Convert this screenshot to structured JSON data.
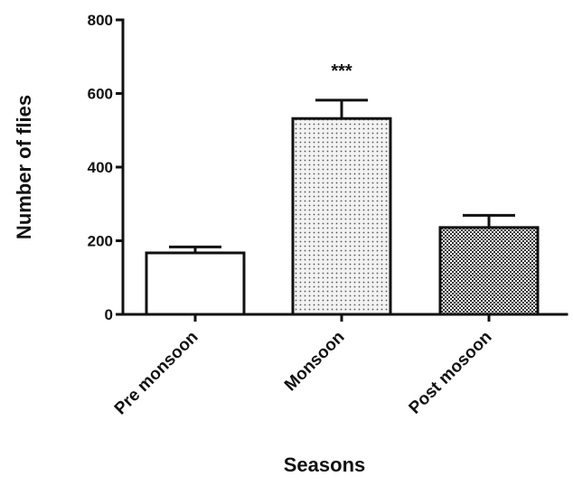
{
  "chart_data": {
    "type": "bar",
    "categories": [
      "Pre monsoon",
      "Monsoon",
      "Post mosoon"
    ],
    "values": [
      167,
      532,
      236
    ],
    "errors": [
      16,
      50,
      33
    ],
    "fills": [
      "plain",
      "dots",
      "checker"
    ],
    "xlabel": "Seasons",
    "ylabel": "Number of flies",
    "ylim": [
      0,
      800
    ],
    "yticks": [
      0,
      200,
      400,
      600,
      800
    ],
    "ytick_labels": [
      "0",
      "200",
      "400",
      "600",
      "800"
    ],
    "annotations": [
      {
        "category": "Monsoon",
        "text": "***"
      }
    ],
    "grid": false,
    "legend": "none"
  }
}
